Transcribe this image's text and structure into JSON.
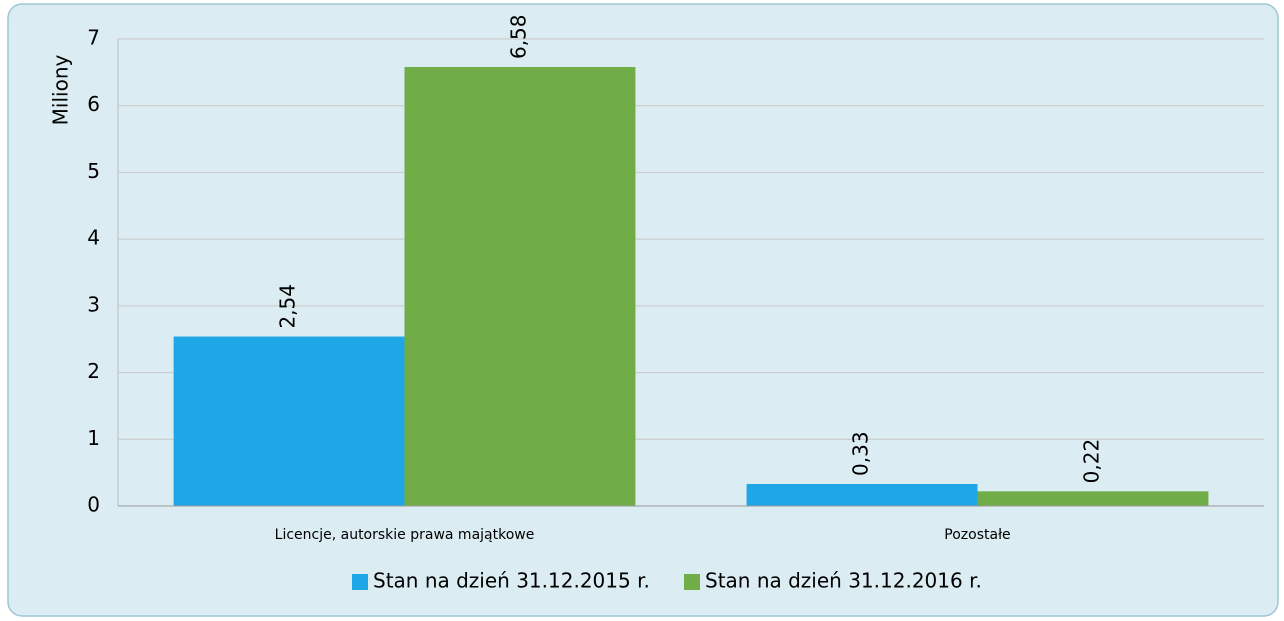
{
  "chart_data": {
    "type": "bar",
    "y_label": "Miliony",
    "categories": [
      "Licencje, autorskie prawa majątkowe",
      "Pozostałe"
    ],
    "series": [
      {
        "name": "Stan na dzień 31.12.2015 r.",
        "color": "#1ea6e6",
        "values": [
          2.54,
          0.33
        ],
        "value_labels": [
          "2,54",
          "0,33"
        ]
      },
      {
        "name": "Stan na dzień 31.12.2016 r.",
        "color": "#70ad47",
        "values": [
          6.58,
          0.22
        ],
        "value_labels": [
          "6,58",
          "0,22"
        ]
      }
    ],
    "ylim": [
      0,
      7
    ],
    "yticks": [
      0,
      1,
      2,
      3,
      4,
      5,
      6,
      7
    ],
    "grid": true,
    "legend": "bottom"
  }
}
